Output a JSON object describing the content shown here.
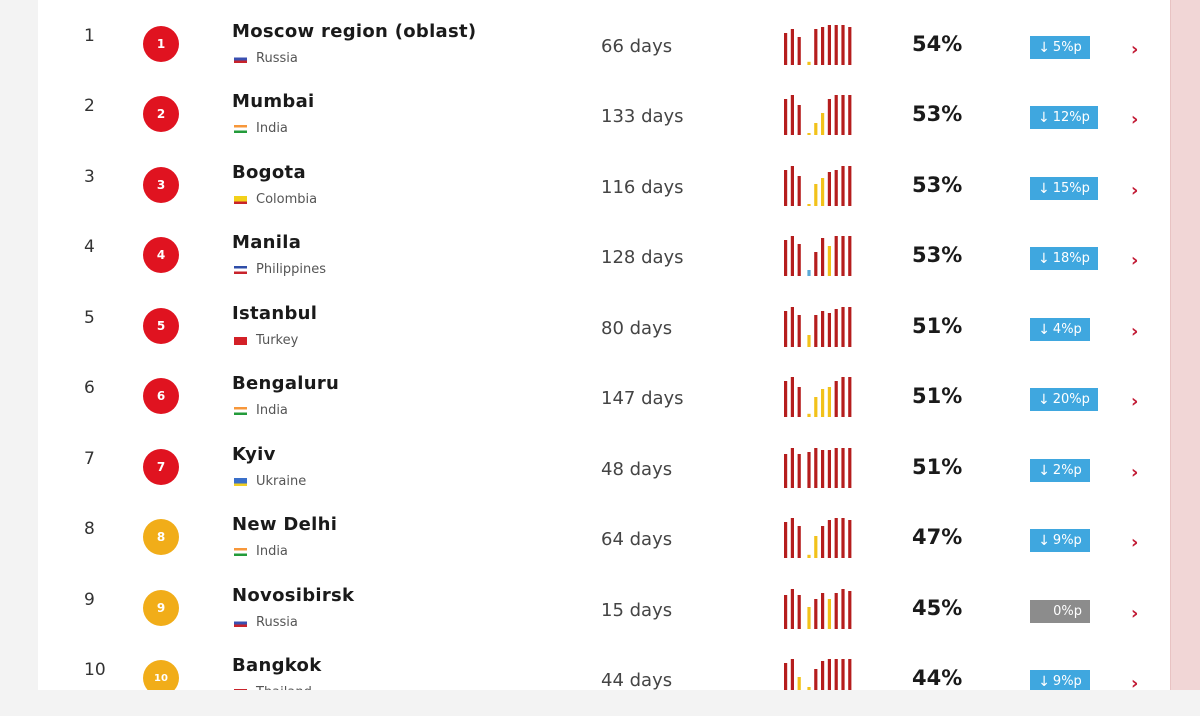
{
  "colors": {
    "red_badge": "#e01320",
    "yellow_badge": "#f1ad19",
    "bar_red": "#b51d1d",
    "bar_yellow": "#f2c21a",
    "change_blue": "#3fa7df",
    "change_gray": "#8c8c8c",
    "chevron": "#c21b35"
  },
  "rows": [
    {
      "rank": "1",
      "badge": "1",
      "badge_color": "red",
      "city": "Moscow region (oblast)",
      "country": "Russia",
      "flag": "russia-flag-icon",
      "days": "66 days",
      "percent": "54%",
      "change": "5%p",
      "change_dir": "down",
      "bars": [
        {
          "h": 0.8,
          "c": "r"
        },
        {
          "h": 0.9,
          "c": "r"
        },
        {
          "h": 0.7,
          "c": "r"
        },
        {
          "h": 0.08,
          "c": "y"
        },
        {
          "h": 0.9,
          "c": "r"
        },
        {
          "h": 0.95,
          "c": "r"
        },
        {
          "h": 1.0,
          "c": "r"
        },
        {
          "h": 1.0,
          "c": "r"
        },
        {
          "h": 1.0,
          "c": "r"
        },
        {
          "h": 0.95,
          "c": "r"
        }
      ]
    },
    {
      "rank": "2",
      "badge": "2",
      "badge_color": "red",
      "city": "Mumbai",
      "country": "India",
      "flag": "india-flag-icon",
      "days": "133 days",
      "percent": "53%",
      "change": "12%p",
      "change_dir": "down",
      "bars": [
        {
          "h": 0.9,
          "c": "r"
        },
        {
          "h": 1.0,
          "c": "r"
        },
        {
          "h": 0.75,
          "c": "r"
        },
        {
          "h": 0.05,
          "c": "y"
        },
        {
          "h": 0.3,
          "c": "y"
        },
        {
          "h": 0.55,
          "c": "y"
        },
        {
          "h": 0.9,
          "c": "r"
        },
        {
          "h": 1.0,
          "c": "r"
        },
        {
          "h": 1.0,
          "c": "r"
        },
        {
          "h": 1.0,
          "c": "r"
        }
      ]
    },
    {
      "rank": "3",
      "badge": "3",
      "badge_color": "red",
      "city": "Bogota",
      "country": "Colombia",
      "flag": "colombia-flag-icon",
      "days": "116 days",
      "percent": "53%",
      "change": "15%p",
      "change_dir": "down",
      "bars": [
        {
          "h": 0.9,
          "c": "r"
        },
        {
          "h": 1.0,
          "c": "r"
        },
        {
          "h": 0.75,
          "c": "r"
        },
        {
          "h": 0.05,
          "c": "y"
        },
        {
          "h": 0.55,
          "c": "y"
        },
        {
          "h": 0.7,
          "c": "y"
        },
        {
          "h": 0.85,
          "c": "r"
        },
        {
          "h": 0.9,
          "c": "r"
        },
        {
          "h": 1.0,
          "c": "r"
        },
        {
          "h": 1.0,
          "c": "r"
        }
      ]
    },
    {
      "rank": "4",
      "badge": "4",
      "badge_color": "red",
      "city": "Manila",
      "country": "Philippines",
      "flag": "philippines-flag-icon",
      "days": "128 days",
      "percent": "53%",
      "change": "18%p",
      "change_dir": "down",
      "bars": [
        {
          "h": 0.9,
          "c": "r"
        },
        {
          "h": 1.0,
          "c": "r"
        },
        {
          "h": 0.8,
          "c": "r"
        },
        {
          "h": 0.15,
          "c": "b"
        },
        {
          "h": 0.6,
          "c": "r"
        },
        {
          "h": 0.95,
          "c": "r"
        },
        {
          "h": 0.75,
          "c": "y"
        },
        {
          "h": 1.0,
          "c": "r"
        },
        {
          "h": 1.0,
          "c": "r"
        },
        {
          "h": 1.0,
          "c": "r"
        }
      ]
    },
    {
      "rank": "5",
      "badge": "5",
      "badge_color": "red",
      "city": "Istanbul",
      "country": "Turkey",
      "flag": "turkey-flag-icon",
      "days": "80 days",
      "percent": "51%",
      "change": "4%p",
      "change_dir": "down",
      "bars": [
        {
          "h": 0.9,
          "c": "r"
        },
        {
          "h": 1.0,
          "c": "r"
        },
        {
          "h": 0.8,
          "c": "r"
        },
        {
          "h": 0.3,
          "c": "y"
        },
        {
          "h": 0.8,
          "c": "r"
        },
        {
          "h": 0.9,
          "c": "r"
        },
        {
          "h": 0.85,
          "c": "r"
        },
        {
          "h": 0.95,
          "c": "r"
        },
        {
          "h": 1.0,
          "c": "r"
        },
        {
          "h": 1.0,
          "c": "r"
        }
      ]
    },
    {
      "rank": "6",
      "badge": "6",
      "badge_color": "red",
      "city": "Bengaluru",
      "country": "India",
      "flag": "india-flag-icon",
      "days": "147 days",
      "percent": "51%",
      "change": "20%p",
      "change_dir": "down",
      "bars": [
        {
          "h": 0.9,
          "c": "r"
        },
        {
          "h": 1.0,
          "c": "r"
        },
        {
          "h": 0.75,
          "c": "r"
        },
        {
          "h": 0.08,
          "c": "y"
        },
        {
          "h": 0.5,
          "c": "y"
        },
        {
          "h": 0.7,
          "c": "y"
        },
        {
          "h": 0.75,
          "c": "y"
        },
        {
          "h": 0.9,
          "c": "r"
        },
        {
          "h": 1.0,
          "c": "r"
        },
        {
          "h": 1.0,
          "c": "r"
        }
      ]
    },
    {
      "rank": "7",
      "badge": "7",
      "badge_color": "red",
      "city": "Kyiv",
      "country": "Ukraine",
      "flag": "ukraine-flag-icon",
      "days": "48 days",
      "percent": "51%",
      "change": "2%p",
      "change_dir": "down",
      "bars": [
        {
          "h": 0.85,
          "c": "r"
        },
        {
          "h": 1.0,
          "c": "r"
        },
        {
          "h": 0.85,
          "c": "r"
        },
        {
          "h": 0.9,
          "c": "r"
        },
        {
          "h": 1.0,
          "c": "r"
        },
        {
          "h": 0.95,
          "c": "r"
        },
        {
          "h": 0.95,
          "c": "r"
        },
        {
          "h": 1.0,
          "c": "r"
        },
        {
          "h": 1.0,
          "c": "r"
        },
        {
          "h": 1.0,
          "c": "r"
        }
      ]
    },
    {
      "rank": "8",
      "badge": "8",
      "badge_color": "yellow",
      "city": "New Delhi",
      "country": "India",
      "flag": "india-flag-icon",
      "days": "64 days",
      "percent": "47%",
      "change": "9%p",
      "change_dir": "down",
      "bars": [
        {
          "h": 0.9,
          "c": "r"
        },
        {
          "h": 1.0,
          "c": "r"
        },
        {
          "h": 0.8,
          "c": "r"
        },
        {
          "h": 0.08,
          "c": "y"
        },
        {
          "h": 0.55,
          "c": "y"
        },
        {
          "h": 0.8,
          "c": "r"
        },
        {
          "h": 0.95,
          "c": "r"
        },
        {
          "h": 1.0,
          "c": "r"
        },
        {
          "h": 1.0,
          "c": "r"
        },
        {
          "h": 0.95,
          "c": "r"
        }
      ]
    },
    {
      "rank": "9",
      "badge": "9",
      "badge_color": "yellow",
      "city": "Novosibirsk",
      "country": "Russia",
      "flag": "russia-flag-icon",
      "days": "15 days",
      "percent": "45%",
      "change": "0%p",
      "change_dir": "none",
      "bars": [
        {
          "h": 0.85,
          "c": "r"
        },
        {
          "h": 1.0,
          "c": "r"
        },
        {
          "h": 0.85,
          "c": "r"
        },
        {
          "h": 0.55,
          "c": "y"
        },
        {
          "h": 0.75,
          "c": "r"
        },
        {
          "h": 0.9,
          "c": "r"
        },
        {
          "h": 0.75,
          "c": "y"
        },
        {
          "h": 0.9,
          "c": "r"
        },
        {
          "h": 1.0,
          "c": "r"
        },
        {
          "h": 0.95,
          "c": "r"
        }
      ]
    },
    {
      "rank": "10",
      "badge": "10",
      "badge_color": "yellow",
      "city": "Bangkok",
      "country": "Thailand",
      "flag": "thailand-flag-icon",
      "days": "44 days",
      "percent": "44%",
      "change": "9%p",
      "change_dir": "down",
      "bars": [
        {
          "h": 0.9,
          "c": "r"
        },
        {
          "h": 1.0,
          "c": "r"
        },
        {
          "h": 0.55,
          "c": "y"
        },
        {
          "h": 0.3,
          "c": "y"
        },
        {
          "h": 0.75,
          "c": "r"
        },
        {
          "h": 0.95,
          "c": "r"
        },
        {
          "h": 1.0,
          "c": "r"
        },
        {
          "h": 1.0,
          "c": "r"
        },
        {
          "h": 1.0,
          "c": "r"
        },
        {
          "h": 1.0,
          "c": "r"
        }
      ]
    }
  ]
}
